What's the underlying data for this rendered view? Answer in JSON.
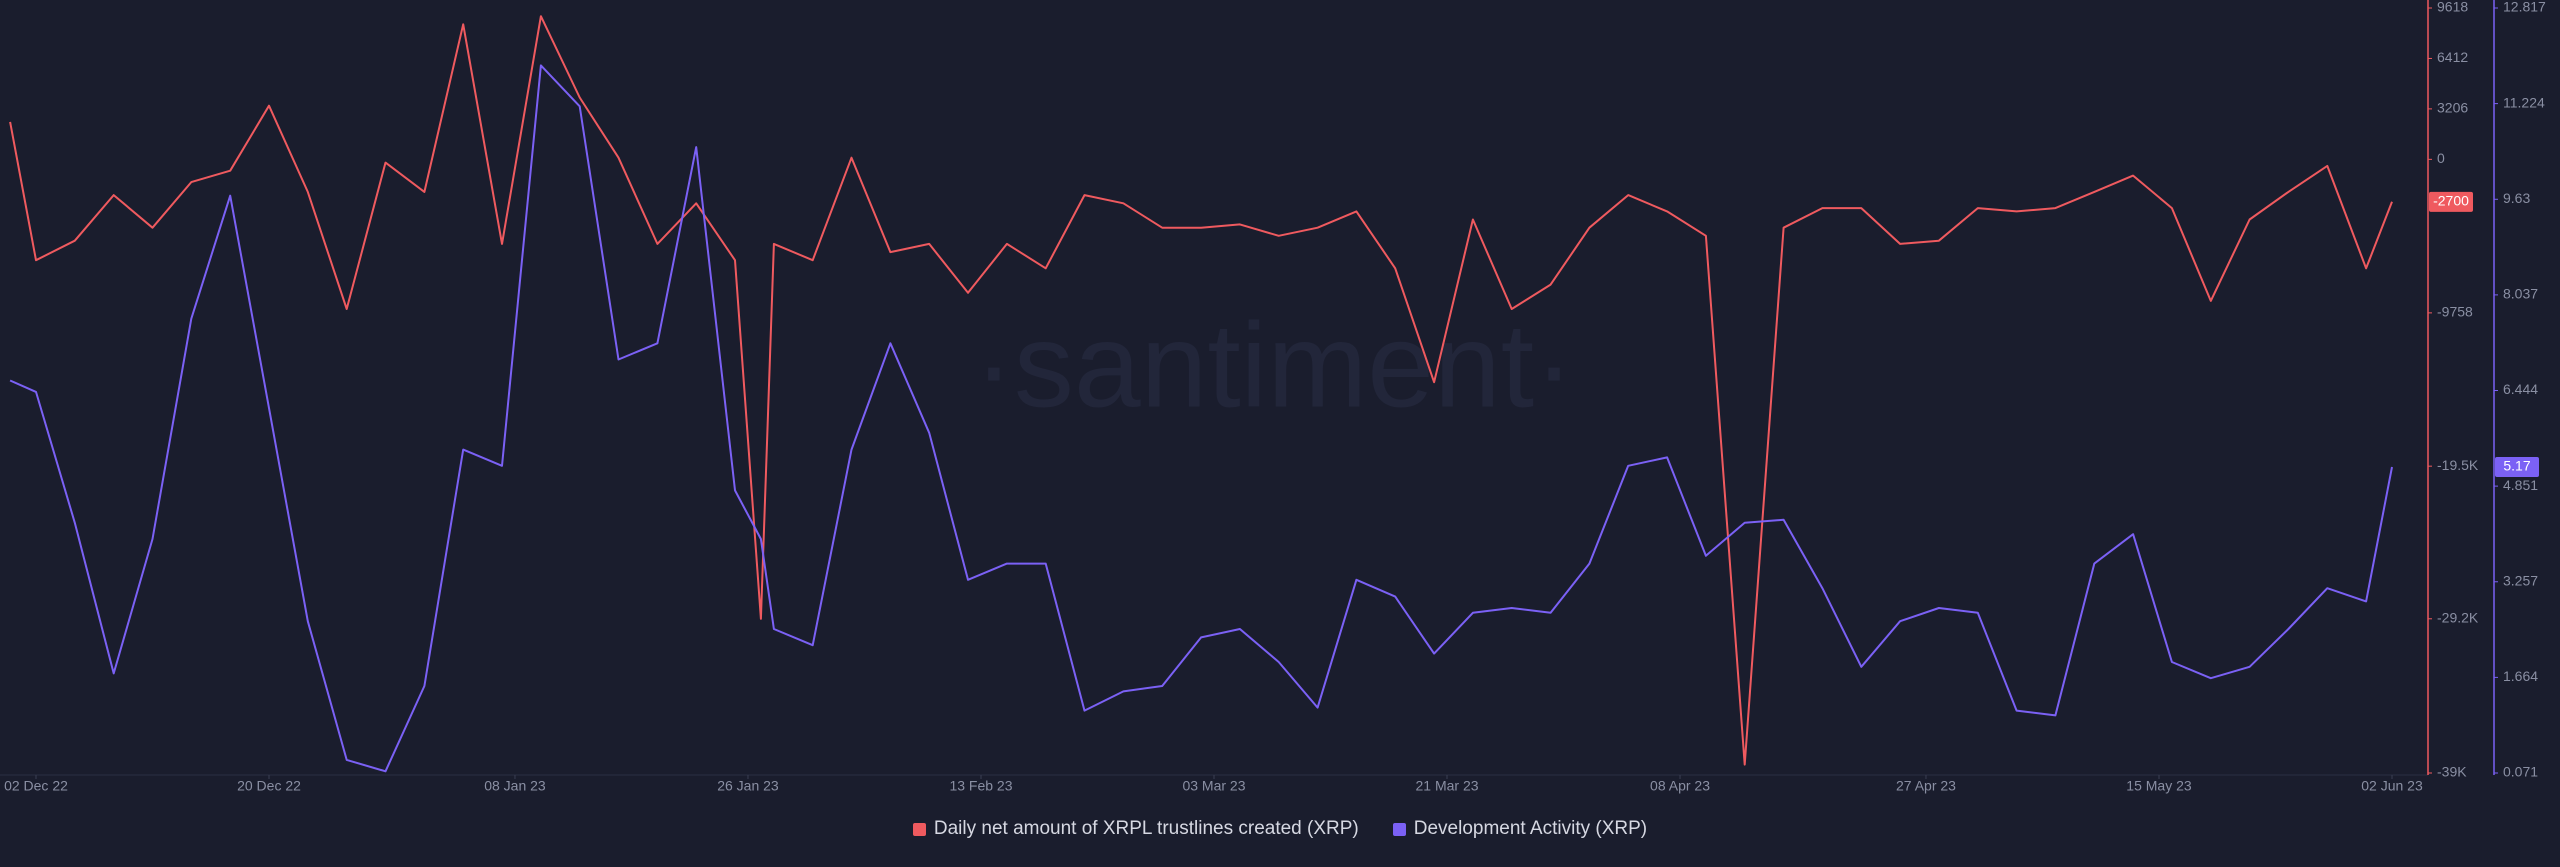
{
  "chart_data": {
    "type": "line",
    "watermark": "·santiment·",
    "x": [
      "2022-11-30",
      "2022-12-02",
      "2022-12-05",
      "2022-12-08",
      "2022-12-11",
      "2022-12-14",
      "2022-12-17",
      "2022-12-20",
      "2022-12-23",
      "2022-12-26",
      "2022-12-29",
      "2023-01-01",
      "2023-01-04",
      "2023-01-07",
      "2023-01-10",
      "2023-01-13",
      "2023-01-16",
      "2023-01-19",
      "2023-01-22",
      "2023-01-25",
      "2023-01-27",
      "2023-01-28",
      "2023-01-31",
      "2023-02-03",
      "2023-02-06",
      "2023-02-09",
      "2023-02-12",
      "2023-02-15",
      "2023-02-18",
      "2023-02-21",
      "2023-02-24",
      "2023-02-27",
      "2023-03-02",
      "2023-03-05",
      "2023-03-08",
      "2023-03-11",
      "2023-03-14",
      "2023-03-17",
      "2023-03-20",
      "2023-03-23",
      "2023-03-26",
      "2023-03-29",
      "2023-04-01",
      "2023-04-04",
      "2023-04-07",
      "2023-04-10",
      "2023-04-13",
      "2023-04-16",
      "2023-04-19",
      "2023-04-22",
      "2023-04-25",
      "2023-04-28",
      "2023-05-01",
      "2023-05-04",
      "2023-05-07",
      "2023-05-10",
      "2023-05-13",
      "2023-05-16",
      "2023-05-19",
      "2023-05-22",
      "2023-05-25",
      "2023-05-28",
      "2023-05-31",
      "2023-06-02"
    ],
    "xlim": [
      "2022-12-02",
      "2023-06-02"
    ],
    "xticks": [
      {
        "value": "2022-12-02",
        "label": "02 Dec 22"
      },
      {
        "value": "2022-12-20",
        "label": "20 Dec 22"
      },
      {
        "value": "2023-01-08",
        "label": "08 Jan 23"
      },
      {
        "value": "2023-01-26",
        "label": "26 Jan 23"
      },
      {
        "value": "2023-02-13",
        "label": "13 Feb 23"
      },
      {
        "value": "2023-03-03",
        "label": "03 Mar 23"
      },
      {
        "value": "2023-03-21",
        "label": "21 Mar 23"
      },
      {
        "value": "2023-04-08",
        "label": "08 Apr 23"
      },
      {
        "value": "2023-04-27",
        "label": "27 Apr 23"
      },
      {
        "value": "2023-05-15",
        "label": "15 May 23"
      },
      {
        "value": "2023-06-02",
        "label": "02 Jun 23"
      }
    ],
    "ylim": [
      -39000,
      9618
    ],
    "yticks": [
      9618,
      6412,
      3206,
      0,
      -9758,
      {
        "value": -19500,
        "label": "-19.5K"
      },
      {
        "value": -29200,
        "label": "-29.2K"
      },
      {
        "value": -39000,
        "label": "-39K"
      }
    ],
    "y2lim": [
      0.071,
      12.817
    ],
    "y2ticks": [
      12.817,
      11.224,
      9.63,
      8.037,
      6.444,
      4.851,
      3.257,
      1.664,
      0.071
    ],
    "grid": false,
    "legend": "bottom",
    "series": [
      {
        "name": "Daily net amount of XRPL trustlines created (XRP)",
        "color": "#ef5a5f",
        "values": [
          2378,
          -6411,
          -5170,
          -2275,
          -4343,
          -1448,
          -724,
          3412,
          -2068,
          -9513,
          -207,
          -2068,
          8582,
          -5377,
          9099,
          3929,
          103,
          -5377,
          -2792,
          -6411,
          -29200,
          -5377,
          -6411,
          103,
          -5894,
          -5377,
          -8479,
          -5377,
          -6928,
          -2275,
          -2792,
          -4343,
          -4343,
          -4136,
          -4860,
          -4343,
          -3309,
          -6928,
          -14166,
          -3826,
          -9513,
          -7962,
          -4343,
          -2275,
          -3309,
          -4860,
          -38465,
          -4343,
          -3102,
          -3102,
          -5377,
          -5170,
          -3102,
          -3309,
          -3102,
          -2068,
          -1034,
          -3102,
          -8996,
          -3826,
          -2068,
          -414,
          -6928,
          -2700
        ]
      },
      {
        "name": "Development Activity (XRP)",
        "color": "#7b61f5",
        "axis": "y2",
        "values": [
          6.61,
          6.42,
          4.24,
          1.73,
          3.97,
          7.64,
          9.69,
          6.15,
          2.6,
          0.29,
          0.1,
          1.52,
          5.46,
          5.19,
          11.86,
          11.18,
          6.96,
          7.23,
          10.5,
          4.78,
          3.97,
          2.47,
          2.2,
          5.46,
          7.23,
          5.74,
          3.29,
          3.56,
          3.56,
          1.11,
          1.43,
          1.52,
          2.33,
          2.47,
          1.92,
          1.16,
          3.29,
          3.01,
          2.06,
          2.74,
          2.82,
          2.74,
          3.56,
          5.19,
          5.33,
          3.69,
          4.24,
          4.29,
          3.15,
          1.84,
          2.6,
          2.82,
          2.74,
          1.11,
          1.03,
          3.56,
          4.05,
          1.92,
          1.65,
          1.84,
          2.47,
          3.15,
          2.93,
          5.17
        ]
      }
    ]
  }
}
